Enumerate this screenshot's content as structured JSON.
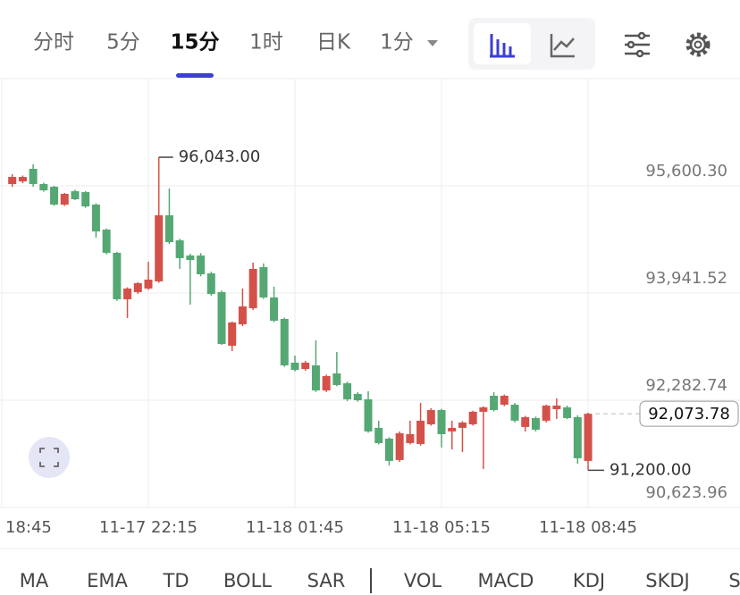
{
  "tabs": [
    "分时",
    "5分",
    "15分",
    "1时",
    "日K",
    "1分"
  ],
  "active_tab": "15分",
  "indicators": [
    "MA",
    "EMA",
    "TD",
    "BOLL",
    "SAR",
    "VOL",
    "MACD",
    "KDJ",
    "SKDJ",
    "S"
  ],
  "chart_data": {
    "type": "candlestick",
    "up_color": "#d4514a",
    "down_color": "#55a873",
    "open": [
      95628,
      95669,
      95863,
      95628,
      95586,
      95310,
      95517,
      95503,
      95310,
      94923,
      94564,
      93845,
      93956,
      94011,
      94122,
      95144,
      94757,
      94522,
      94522,
      94246,
      93956,
      93126,
      93458,
      93707,
      94342,
      93873,
      93541,
      92864,
      92767,
      92822,
      92435,
      92698,
      92546,
      92380,
      92297,
      91855,
      91689,
      91358,
      91620,
      91606,
      91910,
      92131,
      91800,
      91855,
      91910,
      92104,
      92352,
      92214,
      92214,
      91869,
      92007,
      91966,
      92145,
      92173,
      92021,
      91344
    ],
    "high": [
      95780,
      95760,
      95932,
      95650,
      95600,
      95490,
      95540,
      95520,
      95330,
      94940,
      94580,
      94030,
      94110,
      94425,
      96043,
      95560,
      94780,
      94550,
      94560,
      94270,
      93980,
      93500,
      94011,
      94412,
      94400,
      94039,
      93560,
      92974,
      92890,
      93209,
      92680,
      93030,
      92570,
      92410,
      92421,
      91966,
      91710,
      91800,
      91966,
      92242,
      92160,
      92150,
      91966,
      91960,
      92120,
      92190,
      92408,
      92370,
      92240,
      92040,
      92030,
      92215,
      92311,
      92200,
      92050,
      92090
    ],
    "low": [
      95586,
      95640,
      95586,
      95510,
      95290,
      95290,
      95380,
      95260,
      94798,
      94540,
      93820,
      93555,
      93930,
      93990,
      94100,
      94700,
      94315,
      93762,
      94200,
      93900,
      93140,
      93043,
      93430,
      93680,
      93850,
      93490,
      92800,
      92730,
      92740,
      92410,
      92410,
      92500,
      92270,
      92260,
      91780,
      91600,
      91275,
      91330,
      91600,
      91580,
      91890,
      91551,
      91523,
      91482,
      91890,
      91220,
      92110,
      92190,
      91940,
      91800,
      91800,
      91940,
      91993,
      91990,
      91300,
      91200
    ],
    "close": [
      95738,
      95738,
      95628,
      95531,
      95310,
      95476,
      95393,
      95282,
      94895,
      94564,
      93845,
      94011,
      94094,
      94149,
      95144,
      94729,
      94481,
      94453,
      94232,
      93928,
      93154,
      93486,
      93734,
      94315,
      93873,
      93513,
      92822,
      92753,
      92864,
      92435,
      92656,
      92518,
      92297,
      92283,
      91800,
      91620,
      91344,
      91772,
      91758,
      91966,
      92131,
      91758,
      91855,
      91938,
      92104,
      92173,
      92131,
      92352,
      91966,
      92021,
      91827,
      92200,
      92200,
      92007,
      91385,
      92073.78
    ],
    "ylim": [
      90623.96,
      97259.08
    ],
    "yticks": [
      {
        "value": 90623.96,
        "label": "90,623.96"
      },
      {
        "value": 92282.74,
        "label": "92,282.74"
      },
      {
        "value": 93941.52,
        "label": "93,941.52"
      },
      {
        "value": 95600.3,
        "label": "95,600.30"
      }
    ],
    "xlim": [
      -1.17,
      69.51
    ],
    "xticks": [
      {
        "value": -1,
        "label": "18:45"
      },
      {
        "value": 13,
        "label": "11-17 22:15"
      },
      {
        "value": 27,
        "label": "11-18 01:45"
      },
      {
        "value": 41,
        "label": "11-18 05:15"
      },
      {
        "value": 55,
        "label": "11-18 08:45"
      }
    ],
    "grid": true,
    "high_label": "96,043.00",
    "low_label": "91,200.00",
    "last_price": {
      "value": 92073.78,
      "label": "92,073.78"
    }
  }
}
